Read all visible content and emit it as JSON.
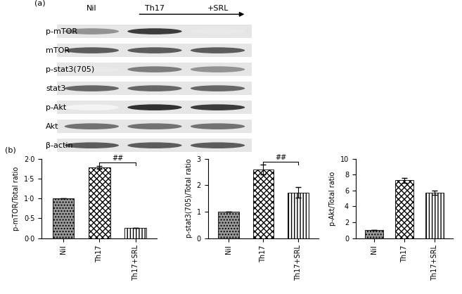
{
  "panel_a": {
    "label": "(a)",
    "lanes": [
      "Nil",
      "Th17",
      "+SRL"
    ],
    "rows": [
      {
        "label": "p-mTOR",
        "intensity": [
          0.5,
          0.9,
          0.1
        ]
      },
      {
        "label": "mTOR",
        "intensity": [
          0.75,
          0.75,
          0.75
        ]
      },
      {
        "label": "p-stat3(705)",
        "intensity": [
          0.1,
          0.6,
          0.5
        ]
      },
      {
        "label": "stat3",
        "intensity": [
          0.7,
          0.7,
          0.7
        ]
      },
      {
        "label": "p-Akt",
        "intensity": [
          0.05,
          0.95,
          0.9
        ]
      },
      {
        "label": "Akt",
        "intensity": [
          0.65,
          0.65,
          0.65
        ]
      },
      {
        "label": "β-actin",
        "intensity": [
          0.75,
          0.75,
          0.75
        ]
      }
    ]
  },
  "panel_b": {
    "label": "(b)"
  },
  "chart_data": [
    {
      "type": "bar",
      "y_label": "p-mTOR/Total ratio",
      "categories": [
        "Nil",
        "Th17",
        "Th17+SRL"
      ],
      "values": [
        1.0,
        1.78,
        0.25
      ],
      "errors": [
        0,
        0.03,
        0
      ],
      "colors": [
        "#9a9a9a",
        "#ffffff",
        "#ffffff"
      ],
      "ylim": [
        0,
        2.0
      ],
      "yticks": [
        {
          "value": 0,
          "label": "0·0"
        },
        {
          "value": 0.5,
          "label": "0·5"
        },
        {
          "value": 1.0,
          "label": "1·0"
        },
        {
          "value": 1.5,
          "label": "1·5"
        },
        {
          "value": 2.0,
          "label": "2·0"
        }
      ],
      "annotations": [
        {
          "text": "##",
          "from": "Th17",
          "to": "Th17+SRL",
          "y": 1.9
        }
      ]
    },
    {
      "type": "bar",
      "y_label": "p-stat3(705)/Total ratio",
      "categories": [
        "Nil",
        "Th17",
        "Th17+SRL"
      ],
      "values": [
        1.0,
        2.6,
        1.72
      ],
      "errors": [
        0,
        0.18,
        0.2
      ],
      "colors": [
        "#9a9a9a",
        "#ffffff",
        "#ffffff"
      ],
      "ylim": [
        0,
        3
      ],
      "yticks": [
        0,
        1,
        2,
        3
      ],
      "annotations": [
        {
          "text": "##",
          "from": "Th17",
          "to": "Th17+SRL",
          "y": 2.88
        }
      ]
    },
    {
      "type": "bar",
      "y_label": "p-Akt/Total ratio",
      "categories": [
        "Nil",
        "Th17",
        "Th17+SRL"
      ],
      "values": [
        1.0,
        7.3,
        5.7
      ],
      "errors": [
        0,
        0.3,
        0.25
      ],
      "colors": [
        "#9a9a9a",
        "#ffffff",
        "#ffffff"
      ],
      "ylim": [
        0,
        10
      ],
      "yticks": [
        0,
        2,
        4,
        6,
        8,
        10
      ]
    }
  ]
}
